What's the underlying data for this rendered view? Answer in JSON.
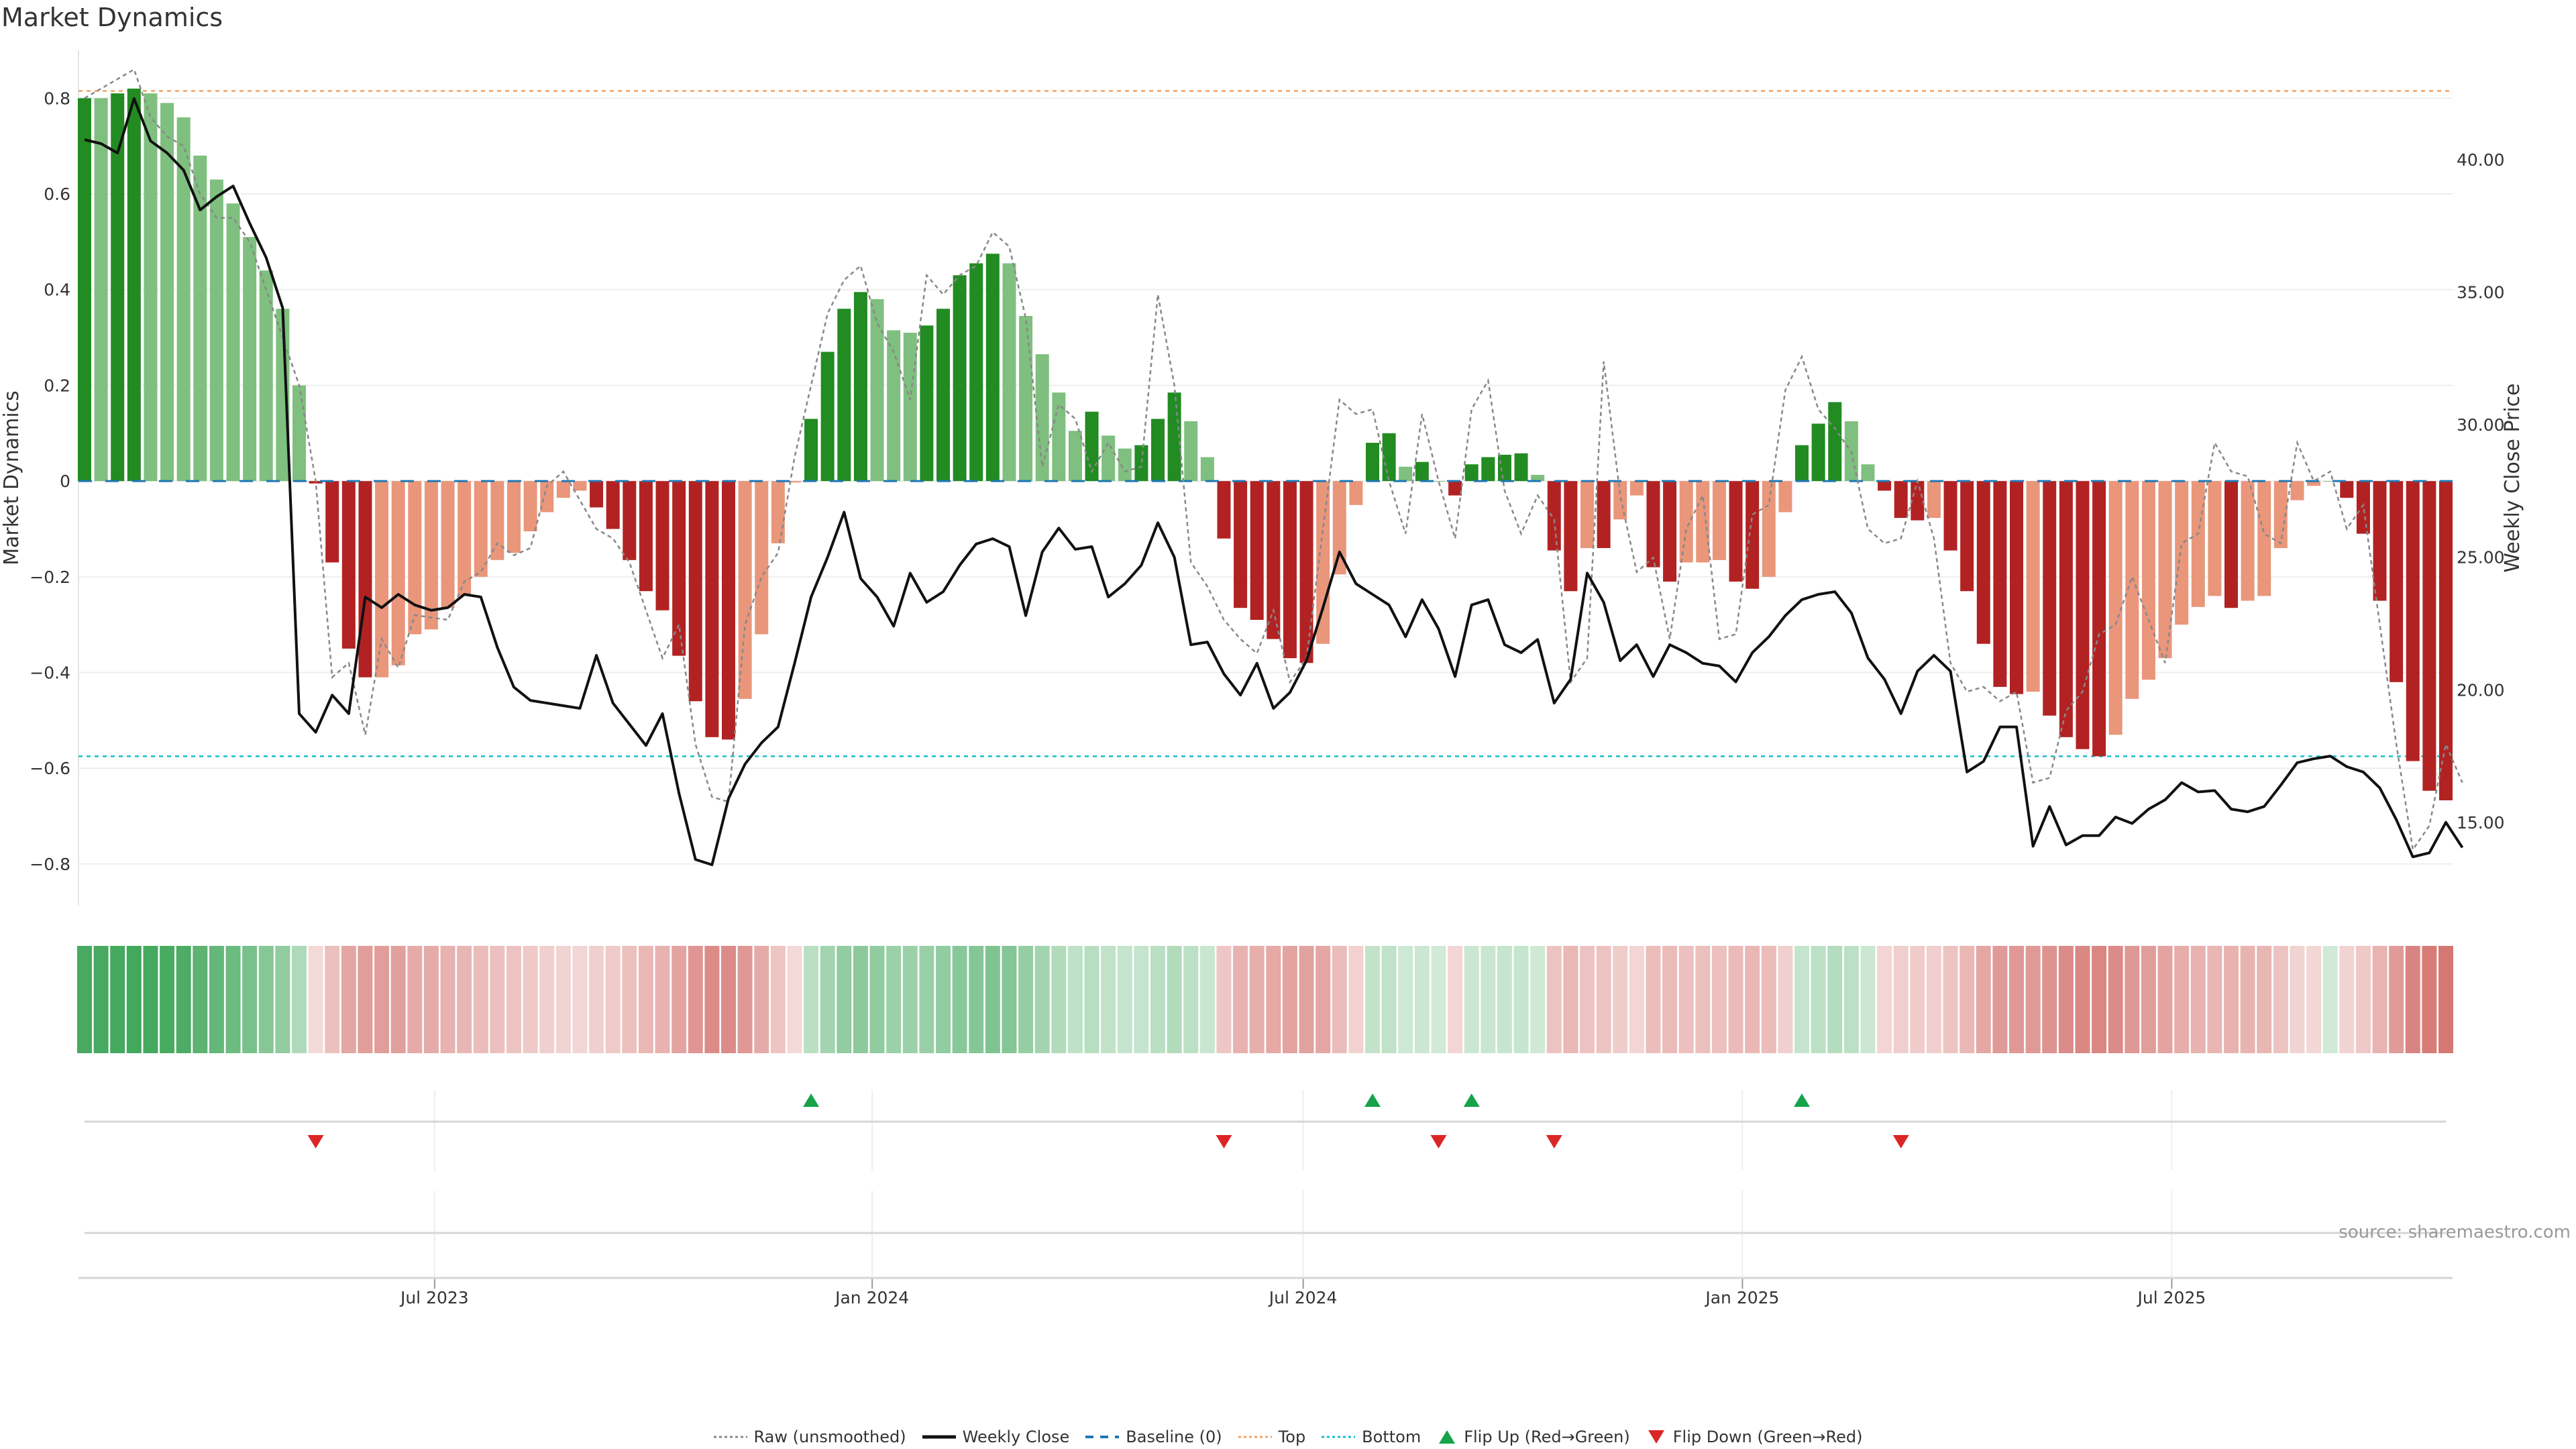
{
  "title": "Market Dynamics",
  "source": "source: sharemaestro.com",
  "colors": {
    "strong_green": "#228b22",
    "light_green": "#7fbf7f",
    "strong_red": "#b22222",
    "light_red": "#e9967a",
    "close": "#111111",
    "raw": "#888888",
    "baseline": "#1f77b4",
    "top": "#f4a261",
    "bottom": "#17becf",
    "flip_up": "#16a34a",
    "flip_down": "#dc2626"
  },
  "chart_data": {
    "type": "bar",
    "title": "Market Dynamics",
    "ylabel": "Market Dynamics",
    "y2label": "Weekly Close Price",
    "ylim": [
      -0.887,
      0.9
    ],
    "y2lim": [
      11.86,
      44.12
    ],
    "yticks": [
      "0.8",
      "0.6",
      "0.4",
      "0.2",
      "0",
      "−0.2",
      "−0.4",
      "−0.6",
      "−0.8"
    ],
    "ytick_values": [
      0.8,
      0.6,
      0.4,
      0.2,
      0,
      -0.2,
      -0.4,
      -0.6,
      -0.8
    ],
    "y2ticks": [
      "40.00",
      "35.00",
      "30.00",
      "25.00",
      "20.00",
      "15.00"
    ],
    "y2tick_values": [
      40,
      35,
      30,
      25,
      20,
      15
    ],
    "xticks": [
      "Jul 2023",
      "Jan 2024",
      "Jul 2024",
      "Jan 2025",
      "Jul 2025"
    ],
    "xtick_index": [
      21.2,
      47.7,
      73.8,
      100.4,
      126.4
    ],
    "top_level": 0.815,
    "bottom_level": -0.575,
    "values": [
      0.8,
      0.8,
      0.81,
      0.82,
      0.81,
      0.79,
      0.76,
      0.68,
      0.63,
      0.58,
      0.51,
      0.44,
      0.36,
      0.2,
      -0.005,
      -0.17,
      -0.35,
      -0.41,
      -0.41,
      -0.385,
      -0.32,
      -0.31,
      -0.265,
      -0.24,
      -0.2,
      -0.165,
      -0.15,
      -0.105,
      -0.065,
      -0.035,
      -0.02,
      -0.055,
      -0.1,
      -0.165,
      -0.23,
      -0.27,
      -0.365,
      -0.46,
      -0.535,
      -0.54,
      -0.455,
      -0.32,
      -0.13,
      -0.003,
      0.13,
      0.27,
      0.36,
      0.395,
      0.38,
      0.315,
      0.31,
      0.325,
      0.36,
      0.43,
      0.455,
      0.475,
      0.455,
      0.345,
      0.265,
      0.185,
      0.105,
      0.145,
      0.095,
      0.068,
      0.075,
      0.13,
      0.185,
      0.125,
      0.05,
      -0.12,
      -0.265,
      -0.29,
      -0.33,
      -0.37,
      -0.38,
      -0.34,
      -0.195,
      -0.05,
      0.08,
      0.1,
      0.03,
      0.04,
      0.0,
      -0.03,
      0.035,
      0.05,
      0.055,
      0.058,
      0.013,
      -0.145,
      -0.23,
      -0.14,
      -0.14,
      -0.08,
      -0.03,
      -0.18,
      -0.21,
      -0.17,
      -0.17,
      -0.165,
      -0.21,
      -0.225,
      -0.2,
      -0.065,
      0.075,
      0.12,
      0.165,
      0.125,
      0.035,
      -0.02,
      -0.077,
      -0.082,
      -0.077,
      -0.145,
      -0.23,
      -0.34,
      -0.43,
      -0.445,
      -0.44,
      -0.49,
      -0.535,
      -0.56,
      -0.575,
      -0.53,
      -0.455,
      -0.415,
      -0.37,
      -0.3,
      -0.263,
      -0.24,
      -0.265,
      -0.25,
      -0.24,
      -0.14,
      -0.04,
      -0.01,
      0.0,
      -0.035,
      -0.11,
      -0.25,
      -0.42,
      -0.585,
      -0.647,
      -0.667
    ],
    "strong": [
      1,
      0,
      1,
      1,
      0,
      0,
      0,
      0,
      0,
      0,
      0,
      0,
      0,
      0,
      1,
      1,
      1,
      1,
      0,
      0,
      0,
      0,
      0,
      0,
      0,
      0,
      0,
      0,
      0,
      0,
      0,
      1,
      1,
      1,
      1,
      1,
      1,
      1,
      1,
      1,
      0,
      0,
      0,
      0,
      1,
      1,
      1,
      1,
      0,
      0,
      0,
      1,
      1,
      1,
      1,
      1,
      0,
      0,
      0,
      0,
      0,
      1,
      0,
      0,
      1,
      1,
      1,
      0,
      0,
      1,
      1,
      1,
      1,
      1,
      1,
      0,
      0,
      0,
      1,
      1,
      0,
      1,
      0,
      1,
      1,
      1,
      1,
      1,
      0,
      1,
      1,
      0,
      1,
      0,
      0,
      1,
      1,
      0,
      0,
      0,
      1,
      1,
      0,
      0,
      1,
      1,
      1,
      0,
      0,
      1,
      1,
      1,
      0,
      1,
      1,
      1,
      1,
      1,
      0,
      1,
      1,
      1,
      1,
      0,
      0,
      0,
      0,
      0,
      0,
      0,
      1,
      0,
      0,
      0,
      0,
      0,
      0,
      1,
      1,
      1,
      1,
      1,
      1,
      1
    ],
    "weekly_close": [
      40.75,
      40.6,
      40.25,
      42.3,
      40.7,
      40.25,
      39.6,
      38.1,
      38.6,
      39.0,
      37.6,
      36.3,
      34.4,
      19.1,
      18.4,
      19.8,
      19.1,
      23.5,
      23.1,
      23.6,
      23.2,
      23.0,
      23.1,
      23.6,
      23.5,
      21.6,
      20.1,
      19.6,
      19.5,
      19.4,
      19.3,
      21.3,
      19.5,
      18.7,
      17.9,
      19.1,
      16.1,
      13.6,
      13.4,
      15.9,
      17.2,
      18.0,
      18.6,
      21.0,
      23.5,
      25.0,
      26.7,
      24.2,
      23.5,
      22.4,
      24.4,
      23.3,
      23.7,
      24.7,
      25.5,
      25.7,
      25.4,
      22.8,
      25.2,
      26.1,
      25.3,
      25.4,
      23.5,
      24.0,
      24.7,
      26.3,
      25.0,
      21.7,
      21.8,
      20.6,
      19.8,
      21.0,
      19.3,
      19.9,
      21.1,
      23.1,
      25.2,
      24.0,
      23.6,
      23.2,
      22.0,
      23.4,
      22.3,
      20.5,
      23.2,
      23.4,
      21.7,
      21.4,
      21.9,
      19.5,
      20.4,
      24.4,
      23.3,
      21.1,
      21.7,
      20.5,
      21.7,
      21.4,
      21.0,
      20.9,
      20.3,
      21.4,
      22.0,
      22.8,
      23.4,
      23.6,
      23.7,
      22.9,
      21.2,
      20.4,
      19.1,
      20.7,
      21.3,
      20.7,
      16.9,
      17.3,
      18.6,
      18.6,
      14.1,
      15.6,
      14.15,
      14.5,
      14.5,
      15.2,
      14.96,
      15.5,
      15.85,
      16.5,
      16.15,
      16.2,
      15.5,
      15.4,
      15.6,
      16.4,
      17.25,
      17.4,
      17.5,
      17.1,
      16.9,
      16.3,
      15.1,
      13.7,
      13.85,
      15.0,
      14.05
    ],
    "raw": [
      0.8,
      0.82,
      0.84,
      0.86,
      0.76,
      0.72,
      0.7,
      0.6,
      0.55,
      0.55,
      0.5,
      0.4,
      0.3,
      0.2,
      0.0,
      -0.41,
      -0.38,
      -0.53,
      -0.33,
      -0.39,
      -0.28,
      -0.285,
      -0.29,
      -0.21,
      -0.19,
      -0.13,
      -0.155,
      -0.14,
      -0.01,
      0.02,
      -0.04,
      -0.1,
      -0.12,
      -0.17,
      -0.27,
      -0.37,
      -0.3,
      -0.55,
      -0.66,
      -0.67,
      -0.3,
      -0.2,
      -0.15,
      0.05,
      0.2,
      0.35,
      0.42,
      0.45,
      0.33,
      0.27,
      0.17,
      0.43,
      0.39,
      0.43,
      0.45,
      0.52,
      0.49,
      0.34,
      0.03,
      0.16,
      0.13,
      0.02,
      0.08,
      0.02,
      0.03,
      0.39,
      0.2,
      -0.17,
      -0.22,
      -0.29,
      -0.33,
      -0.36,
      -0.27,
      -0.42,
      -0.37,
      -0.1,
      0.17,
      0.14,
      0.15,
      0.0,
      -0.11,
      0.14,
      0.0,
      -0.12,
      0.15,
      0.21,
      -0.02,
      -0.11,
      -0.03,
      -0.08,
      -0.42,
      -0.37,
      0.25,
      -0.03,
      -0.19,
      -0.16,
      -0.33,
      -0.1,
      -0.03,
      -0.33,
      -0.32,
      -0.07,
      -0.05,
      0.19,
      0.26,
      0.15,
      0.11,
      0.06,
      -0.1,
      -0.13,
      -0.12,
      0.0,
      -0.12,
      -0.38,
      -0.44,
      -0.43,
      -0.46,
      -0.44,
      -0.63,
      -0.62,
      -0.48,
      -0.44,
      -0.32,
      -0.3,
      -0.2,
      -0.29,
      -0.38,
      -0.13,
      -0.11,
      0.08,
      0.02,
      0.01,
      -0.11,
      -0.13,
      0.08,
      0.0,
      0.02,
      -0.1,
      -0.05,
      -0.3,
      -0.55,
      -0.77,
      -0.72,
      -0.55,
      -0.63
    ],
    "flip_up_index": [
      44,
      78,
      84,
      104
    ],
    "flip_down_index": [
      14,
      69,
      82,
      89,
      110
    ],
    "legend": [
      "Raw (unsmoothed)",
      "Weekly Close",
      "Baseline (0)",
      "Top",
      "Bottom",
      "Flip Up (Red→Green)",
      "Flip Down (Green→Red)"
    ],
    "legend_placement": "bottom-center"
  }
}
